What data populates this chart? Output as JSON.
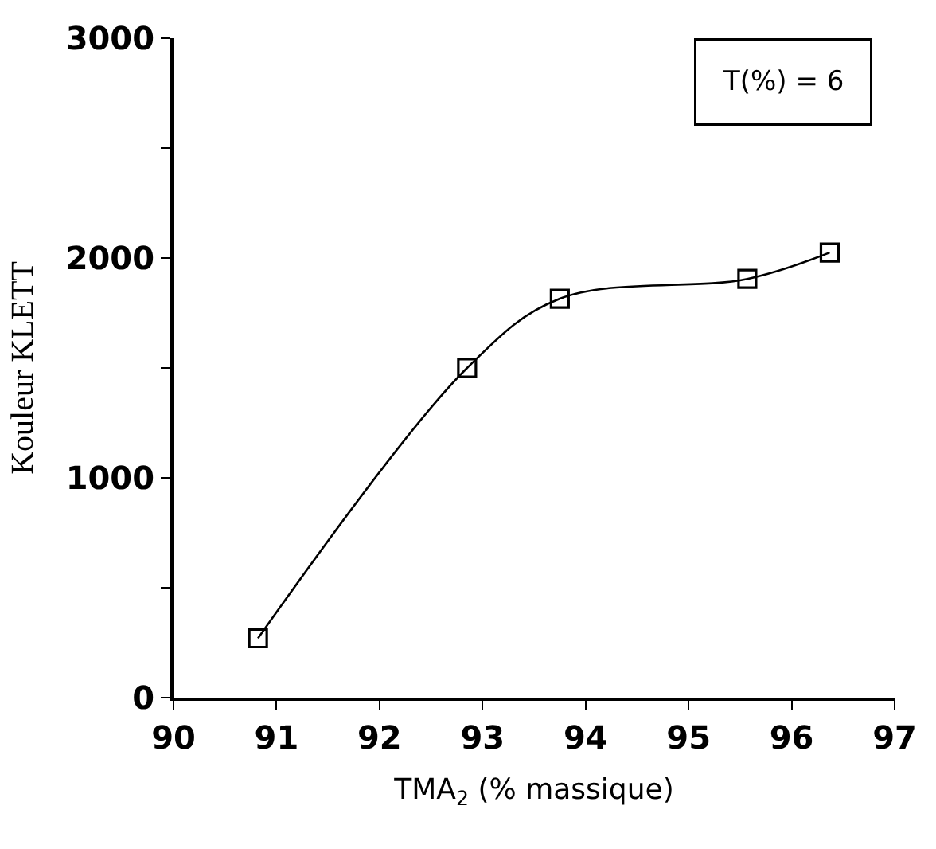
{
  "chart_data": {
    "type": "line",
    "xlabel": "TMA$_{2}$ (% massique)",
    "ylabel": "Kouleur KLETT",
    "annotations": [
      "T(%) = 6"
    ],
    "x": [
      90.82,
      92.85,
      93.75,
      95.57,
      96.37
    ],
    "series": [
      {
        "color": "#000000",
        "values": [
          270,
          1500,
          1815,
          1905,
          2025
        ]
      }
    ],
    "xlim": [
      90,
      97
    ],
    "xticks": [
      90,
      91,
      92,
      93,
      94,
      95,
      96,
      97
    ],
    "ylim": [
      0,
      3000
    ],
    "yticks": [
      0,
      {
        "value": 500,
        "label": null
      },
      1000,
      {
        "value": 1500,
        "label": null
      },
      2000,
      {
        "value": 2500,
        "label": null
      },
      3000
    ],
    "legend": false,
    "marker": "square",
    "line_style": "solid"
  }
}
